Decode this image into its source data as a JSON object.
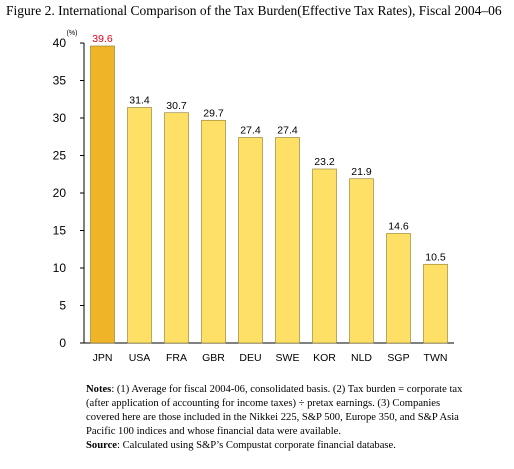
{
  "figure_title": "Figure 2. International Comparison of the Tax Burden(Effective Tax Rates), Fiscal 2004–06",
  "chart_data": {
    "type": "bar",
    "title": "Figure 2. International Comparison of the Tax Burden(Effective Tax Rates), Fiscal 2004–06",
    "ylabel": "(%)",
    "xlabel": "",
    "categories": [
      "JPN",
      "USA",
      "FRA",
      "GBR",
      "DEU",
      "SWE",
      "KOR",
      "NLD",
      "SGP",
      "TWN"
    ],
    "values": [
      39.6,
      31.4,
      30.7,
      29.7,
      27.4,
      27.4,
      23.2,
      21.9,
      14.6,
      10.5
    ],
    "value_labels": [
      "39.6",
      "31.4",
      "30.7",
      "29.7",
      "27.4",
      "27.4",
      "23.2",
      "21.9",
      "14.6",
      "10.5"
    ],
    "ylim": [
      0,
      40
    ],
    "yticks": [
      0,
      5,
      10,
      15,
      20,
      25,
      30,
      35,
      40
    ],
    "grid": false,
    "legend": "none",
    "colors": {
      "highlight_bar": "#F0B429",
      "bar": "#FFE066",
      "bar_stroke": "#8a7a2a",
      "highlight_label": "#E0001B",
      "axis": "#000000"
    },
    "highlight_index": 0
  },
  "notes": {
    "notes_label": "Notes",
    "notes_text": ": (1) Average for fiscal 2004-06, consolidated basis. (2) Tax burden = corporate tax (after application of accounting for income taxes) ÷ pretax earnings. (3) Companies covered here are those included in the Nikkei 225, S&P 500, Europe 350, and S&P Asia Pacific 100 indices and whose financial data were available.",
    "source_label": "Source",
    "source_text": ": Calculated using S&P’s Compustat corporate financial database."
  }
}
